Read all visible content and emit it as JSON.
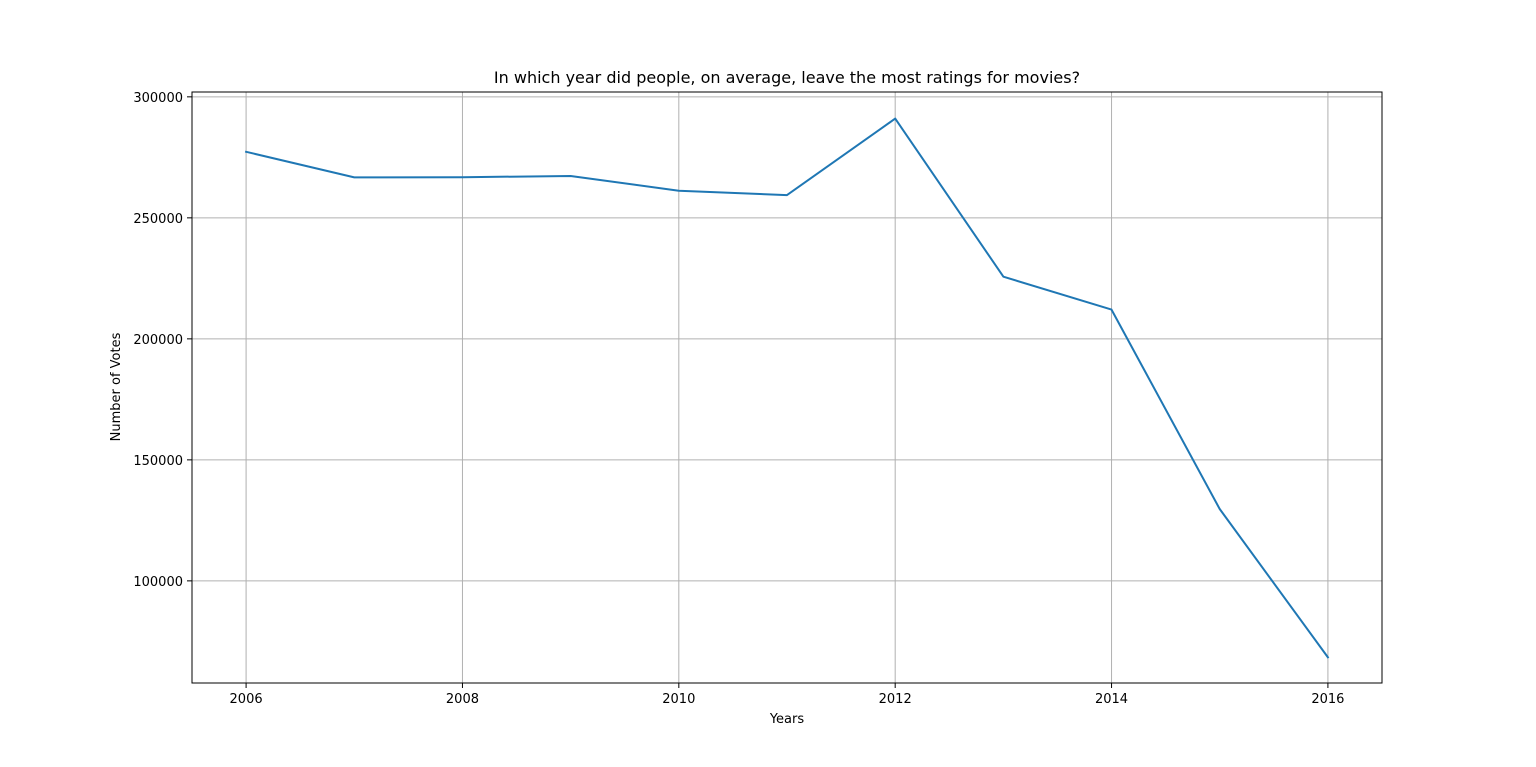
{
  "chart_data": {
    "type": "line",
    "title": "In which year did people, on average, leave the most ratings for movies?",
    "xlabel": "Years",
    "ylabel": "Number of Votes",
    "x": [
      2006,
      2007,
      2008,
      2009,
      2010,
      2011,
      2012,
      2013,
      2014,
      2015,
      2016
    ],
    "series": [
      {
        "values": [
          277300,
          266700,
          266800,
          267300,
          261200,
          259400,
          291000,
          225700,
          212100,
          129700,
          68400
        ],
        "color": "#1f77b4"
      }
    ],
    "xlim": [
      2005.5,
      2016.5
    ],
    "ylim": [
      57800,
      302000
    ],
    "xticks": [
      2006,
      2008,
      2010,
      2012,
      2014,
      2016
    ],
    "yticks": [
      100000,
      150000,
      200000,
      250000,
      300000
    ],
    "grid": true,
    "legend": "none"
  }
}
